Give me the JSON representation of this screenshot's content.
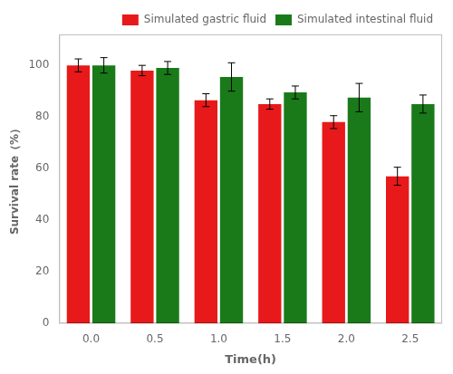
{
  "chart_data": {
    "type": "bar",
    "categories": [
      "0.0",
      "0.5",
      "1.0",
      "1.5",
      "2.0",
      "2.5"
    ],
    "series": [
      {
        "name": "Simulated gastric fluid",
        "color": "#e8191a",
        "values": [
          100.0,
          98.0,
          86.5,
          85.0,
          78.0,
          57.0
        ],
        "errors": [
          2.5,
          2.0,
          2.5,
          2.0,
          2.5,
          3.5
        ]
      },
      {
        "name": "Simulated intestinal fluid",
        "color": "#1a7a1a",
        "values": [
          100.0,
          99.0,
          95.5,
          89.5,
          87.5,
          85.0
        ],
        "errors": [
          3.0,
          2.5,
          5.5,
          2.5,
          5.5,
          3.5
        ]
      }
    ],
    "xlabel": "Time(h)",
    "ylabel": "Survival rate（%）",
    "ylim": [
      0,
      112
    ],
    "yticks": [
      0,
      20,
      40,
      60,
      80,
      100
    ],
    "grid": false,
    "legend": "upper right"
  }
}
